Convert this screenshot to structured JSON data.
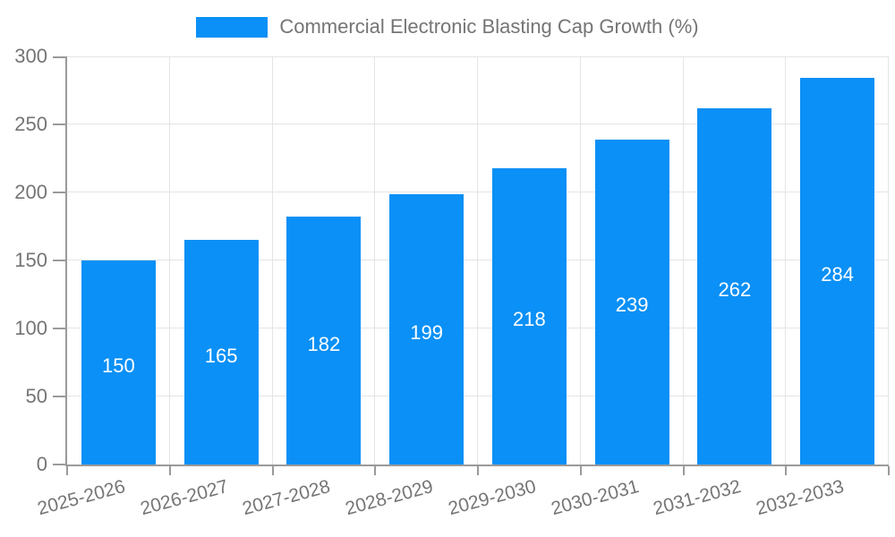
{
  "legend": {
    "label": "Commercial Electronic Blasting Cap Growth (%)"
  },
  "colors": {
    "bar": "#0a90f6",
    "grid": "#e4e4e4",
    "axis": "#9a9a9a",
    "tick_text": "#757575",
    "value_label": "#ffffff",
    "background": "#ffffff"
  },
  "chart_data": {
    "type": "bar",
    "title": "",
    "xlabel": "",
    "ylabel": "",
    "categories": [
      "2025-2026",
      "2026-2027",
      "2027-2028",
      "2028-2029",
      "2029-2030",
      "2030-2031",
      "2031-2032",
      "2032-2033"
    ],
    "values": [
      150,
      165,
      182,
      199,
      218,
      239,
      262,
      284
    ],
    "series_name": "Commercial Electronic Blasting Cap Growth (%)",
    "ylim": [
      0,
      300
    ],
    "yticks": [
      0,
      50,
      100,
      150,
      200,
      250,
      300
    ],
    "grid": true,
    "legend_position": "top-center",
    "value_labels_position": "inside-center",
    "xtick_rotation_deg": -15
  }
}
